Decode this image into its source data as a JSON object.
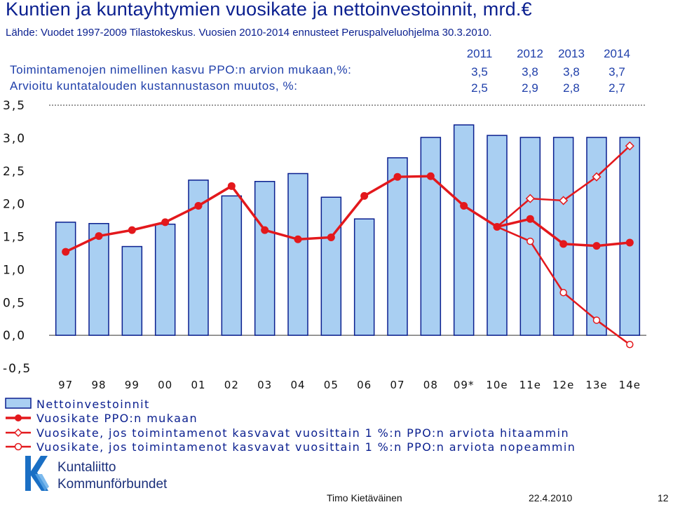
{
  "title": "Kuntien ja kuntayhtymien vuosikate ja nettoinvestoinnit, mrd.€",
  "source": "Lähde: Vuodet 1997-2009 Tilastokeskus. Vuosien 2010-2014 ennusteet Peruspalveluohjelma 30.3.2010.",
  "info_table": {
    "years": [
      "2011",
      "2012",
      "2013",
      "2014"
    ],
    "rows": [
      {
        "label": "Toimintamenojen nimellinen kasvu PPO:n  arvion mukaan,%:",
        "values": [
          "3,5",
          "3,8",
          "3,8",
          "3,7"
        ]
      },
      {
        "label": "Arvioitu kuntatalouden kustannustason muutos, %:",
        "values": [
          "2,5",
          "2,9",
          "2,8",
          "2,7"
        ]
      }
    ]
  },
  "colors": {
    "bar_fill": "#a9cff2",
    "bar_stroke": "#0a1f8f",
    "line_main": "#e3181c",
    "text_blue": "#0a1f8f"
  },
  "chart_data": {
    "type": "bar",
    "categories": [
      "97",
      "98",
      "99",
      "00",
      "01",
      "02",
      "03",
      "04",
      "05",
      "06",
      "07",
      "08",
      "09*",
      "10e",
      "11e",
      "12e",
      "13e",
      "14e"
    ],
    "ylim": [
      -0.5,
      3.5
    ],
    "yticks": [
      "3,5",
      "3,0",
      "2,5",
      "2,0",
      "1,5",
      "1,0",
      "0,5",
      "0,0",
      "-0,5"
    ],
    "ytick_values": [
      3.5,
      3.0,
      2.5,
      2.0,
      1.5,
      1.0,
      0.5,
      0.0,
      -0.5
    ],
    "series": [
      {
        "name": "Nettoinvestoinnit",
        "type": "bar",
        "values": [
          1.72,
          1.7,
          1.35,
          1.69,
          2.36,
          2.12,
          2.34,
          2.46,
          2.1,
          1.77,
          2.7,
          3.01,
          3.2,
          3.04,
          3.01,
          3.01,
          3.01,
          3.01
        ]
      },
      {
        "name": "Vuosikate PPO:n mukaan",
        "type": "line",
        "marker": "circle-filled",
        "values": [
          1.27,
          1.51,
          1.6,
          1.72,
          1.97,
          2.27,
          1.6,
          1.46,
          1.49,
          2.12,
          2.41,
          2.42,
          1.97,
          1.65,
          1.77,
          1.39,
          1.36,
          1.41
        ]
      },
      {
        "name": "Vuosikate, jos toimintamenot kasvavat vuosittain 1 %:n  PPO:n arviota hitaammin",
        "type": "line",
        "marker": "diamond-open",
        "values": [
          null,
          null,
          null,
          null,
          null,
          null,
          null,
          null,
          null,
          null,
          null,
          null,
          null,
          1.65,
          2.08,
          2.05,
          2.41,
          2.88
        ]
      },
      {
        "name": "Vuosikate, jos toimintamenot kasvavat vuosittain 1 %:n PPO:n  arviota nopeammin",
        "type": "line",
        "marker": "circle-open",
        "values": [
          null,
          null,
          null,
          null,
          null,
          null,
          null,
          null,
          null,
          null,
          null,
          null,
          null,
          1.65,
          1.43,
          0.65,
          0.23,
          -0.14
        ]
      }
    ],
    "legend_position": "bottom-left"
  },
  "footer": {
    "author": "Timo Kietäväinen",
    "date": "22.4.2010",
    "page": "12"
  },
  "logo": {
    "line1": "Kuntaliitto",
    "line2": "Kommunförbundet"
  }
}
